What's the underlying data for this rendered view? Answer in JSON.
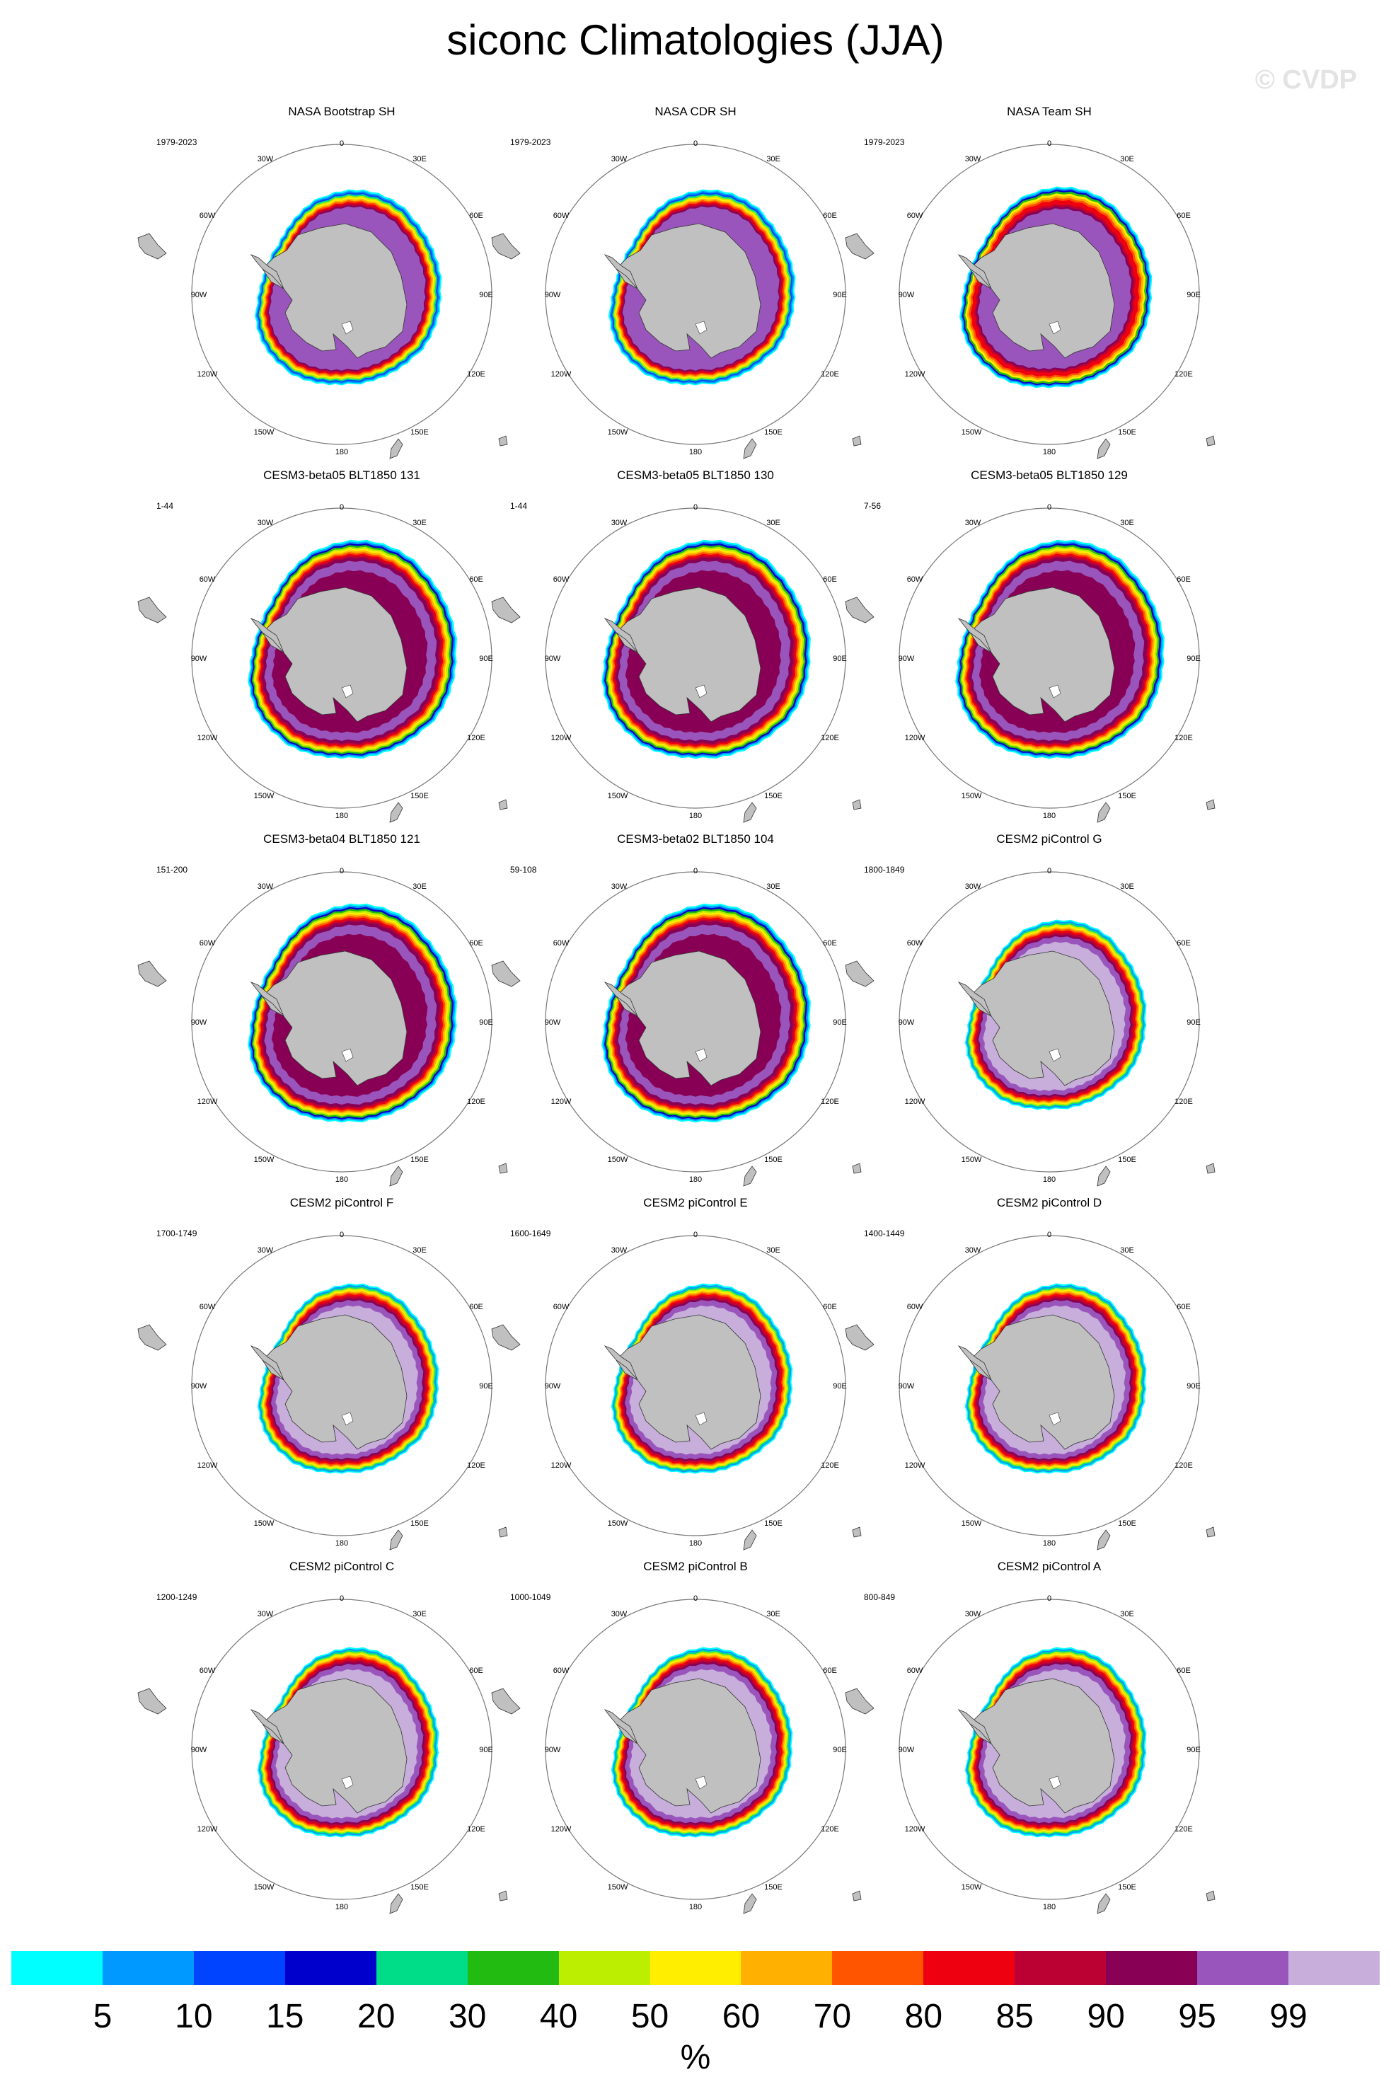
{
  "title": "siconc Climatologies (JJA)",
  "watermark": "© CVDP",
  "panels": [
    {
      "title": "NASA Bootstrap SH",
      "years": "1979-2023",
      "style": "obs"
    },
    {
      "title": "NASA CDR SH",
      "years": "1979-2023",
      "style": "obs"
    },
    {
      "title": "NASA Team SH",
      "years": "1979-2023",
      "style": "team"
    },
    {
      "title": "CESM3-beta05 BLT1850 131",
      "years": "1-44",
      "style": "cesm3"
    },
    {
      "title": "CESM3-beta05 BLT1850 130",
      "years": "1-44",
      "style": "cesm3"
    },
    {
      "title": "CESM3-beta05 BLT1850 129",
      "years": "7-56",
      "style": "cesm3"
    },
    {
      "title": "CESM3-beta04 BLT1850 121",
      "years": "151-200",
      "style": "cesm3"
    },
    {
      "title": "CESM3-beta02 BLT1850 104",
      "years": "59-108",
      "style": "cesm3"
    },
    {
      "title": "CESM2 piControl G",
      "years": "1800-1849",
      "style": "cesm2"
    },
    {
      "title": "CESM2 piControl F",
      "years": "1700-1749",
      "style": "cesm2"
    },
    {
      "title": "CESM2 piControl E",
      "years": "1600-1649",
      "style": "cesm2"
    },
    {
      "title": "CESM2 piControl D",
      "years": "1400-1449",
      "style": "cesm2"
    },
    {
      "title": "CESM2 piControl C",
      "years": "1200-1249",
      "style": "cesm2"
    },
    {
      "title": "CESM2 piControl B",
      "years": "1000-1049",
      "style": "cesm2"
    },
    {
      "title": "CESM2 piControl A",
      "years": "800-849",
      "style": "cesm2"
    }
  ],
  "longitude_labels": {
    "top": "0",
    "bottom": "180",
    "upper_left": "30W",
    "upper_right": "30E",
    "left_upper": "60W",
    "right_upper": "60E",
    "left": "90W",
    "right": "90E",
    "left_lower": "120W",
    "right_lower": "120E",
    "lower_left": "150W",
    "lower_right": "150E"
  },
  "colorbar": {
    "colors": [
      "#00ffff",
      "#0099ff",
      "#0044ff",
      "#0000cc",
      "#00dd88",
      "#22bb11",
      "#bbee00",
      "#ffee00",
      "#ffb000",
      "#ff5500",
      "#ee0011",
      "#bb0033",
      "#880055",
      "#9955bb",
      "#c7aedb"
    ],
    "ticks": [
      "5",
      "10",
      "15",
      "20",
      "30",
      "40",
      "50",
      "60",
      "70",
      "80",
      "85",
      "90",
      "95",
      "99"
    ],
    "units": "%"
  },
  "colors": {
    "land": "#c0c0c0",
    "ocean": "#ffffff",
    "coast": "#333333"
  }
}
